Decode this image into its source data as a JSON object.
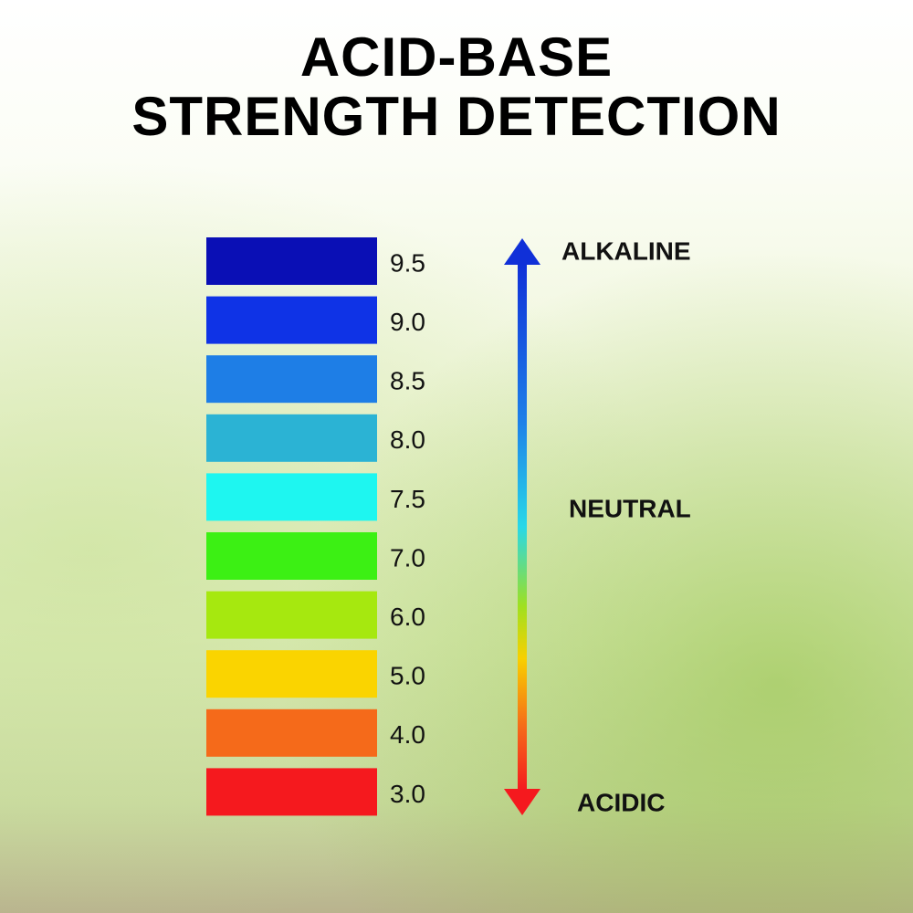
{
  "header": {
    "title_lines": [
      "ACID-BASE",
      "STRENGTH DETECTION"
    ]
  },
  "scale": [
    {
      "label": "9.5",
      "color": "#0a0fb5"
    },
    {
      "label": "9.0",
      "color": "#0f33e6"
    },
    {
      "label": "8.5",
      "color": "#1e7ee6"
    },
    {
      "label": "8.0",
      "color": "#2bb3d4"
    },
    {
      "label": "7.5",
      "color": "#1ef6f0"
    },
    {
      "label": "7.0",
      "color": "#3cf014"
    },
    {
      "label": "6.0",
      "color": "#a6e80f"
    },
    {
      "label": "5.0",
      "color": "#fad400"
    },
    {
      "label": "4.0",
      "color": "#f56a1a"
    },
    {
      "label": "3.0",
      "color": "#f5191e"
    }
  ],
  "arrow_labels": {
    "top": "ALKALINE",
    "middle": "NEUTRAL",
    "bottom": "ACIDIC"
  }
}
